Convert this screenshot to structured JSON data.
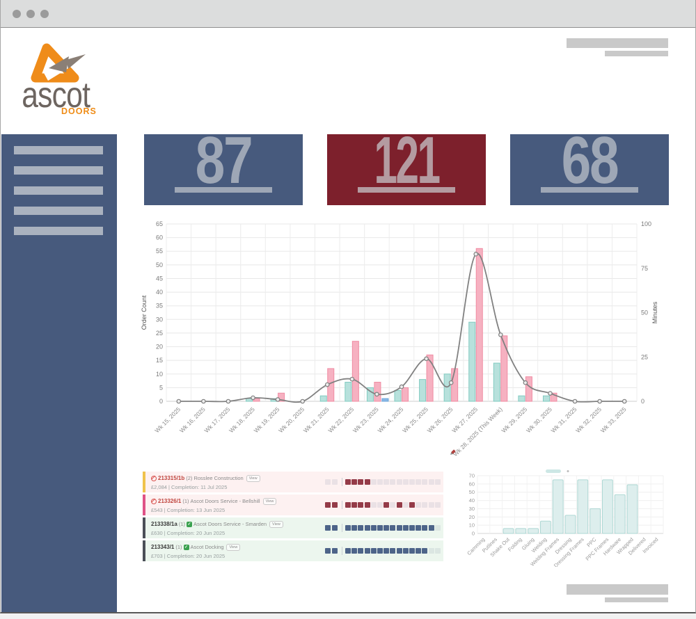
{
  "window": {
    "type": "browser-mockup"
  },
  "logo": {
    "brand": "ascot",
    "sub": "DOORS",
    "orange": "#ef8c1a",
    "gray": "#6d6560"
  },
  "stats": [
    {
      "value": "87",
      "bg": "#475a7d",
      "fg": "#9ea7b6"
    },
    {
      "value": "121",
      "bg": "#7d202c",
      "fg": "#b49ba1"
    },
    {
      "value": "68",
      "bg": "#475a7d",
      "fg": "#9ea7b6"
    }
  ],
  "chart_data": [
    {
      "type": "bar",
      "title": "",
      "ylabel": "Order Count",
      "ylabel_right": "Minutes",
      "ylim": [
        0,
        65
      ],
      "ylim_right": [
        0,
        100
      ],
      "ytick_step": 5,
      "yticks_right": [
        0,
        25,
        50,
        75,
        100
      ],
      "categories": [
        "Wk 15, 2025",
        "Wk 16, 2025",
        "Wk 17, 2025",
        "Wk 18, 2025",
        "Wk 19, 2025",
        "Wk 20, 2025",
        "Wk 21, 2025",
        "Wk 22, 2025",
        "Wk 23, 2025",
        "Wk 24, 2025",
        "Wk 25, 2025",
        "Wk 26, 2025",
        "Wk 27, 2025",
        "Wk 28, 2025 (This Week)",
        "Wk 29, 2025",
        "Wk 30, 2025",
        "Wk 31, 2025",
        "Wk 32, 2025",
        "Wk 33, 2025"
      ],
      "this_week_index": 13,
      "series": [
        {
          "name": "teal-bars",
          "type": "bar",
          "axis": "left",
          "fill": "#b7e1dc",
          "stroke": "#82cbc1",
          "values": [
            0,
            0,
            0,
            1,
            1,
            0,
            2,
            7,
            5,
            4,
            8,
            10,
            29,
            14,
            2,
            2,
            0,
            0,
            0
          ]
        },
        {
          "name": "pink-bars",
          "type": "bar",
          "axis": "left",
          "fill": "#f6b1c1",
          "stroke": "#f08ba2",
          "values": [
            0,
            0,
            0,
            1,
            3,
            0,
            12,
            22,
            7,
            5,
            17,
            12,
            56,
            24,
            9,
            3,
            0,
            0,
            0
          ]
        },
        {
          "name": "blue-bars",
          "type": "bar",
          "axis": "left",
          "fill": "#89b9e6",
          "stroke": "#6aa4da",
          "values": [
            0,
            0,
            0,
            0,
            0,
            0,
            0,
            0,
            1,
            0,
            0,
            0,
            0,
            0,
            0,
            0,
            0,
            0,
            0
          ]
        },
        {
          "name": "gray-line",
          "type": "line",
          "axis": "right",
          "color": "#818181",
          "values": [
            0,
            0,
            0,
            2,
            1,
            0,
            9.4,
            12.5,
            4,
            8.2,
            24,
            10.5,
            83,
            37.5,
            10.5,
            4.5,
            0,
            0,
            0
          ]
        }
      ]
    },
    {
      "type": "bar",
      "title": "",
      "ylim": [
        0,
        70
      ],
      "ytick_step": 10,
      "categories": [
        "Camming",
        "Putlines",
        "Shake Out",
        "Folding",
        "Gluing",
        "Welding",
        "Welding Frames",
        "Dressing",
        "Dressing Frames",
        "PPC",
        "PPC Frames",
        "Hardware",
        "Wrapped",
        "Delivered",
        "Invoiced"
      ],
      "values": [
        0,
        0,
        6,
        6,
        6,
        15,
        65,
        22,
        65,
        30,
        65,
        47,
        59,
        0,
        0
      ],
      "bar_fill": "#ddeeed",
      "bar_stroke": "#aed8d4"
    }
  ],
  "orders": [
    {
      "id": "213315/1b",
      "qty": "(2)",
      "customer": "Rosslee Construction",
      "view_label": "View",
      "detail": "£2,084 | Completion: 11 Jul 2025",
      "status": "stopped",
      "accent": "#f0c24b",
      "bg": "#fdf1f1",
      "id_color": "#c0463f",
      "step_color": "#943b48",
      "pre": [
        0,
        0
      ],
      "steps": [
        1,
        1,
        1,
        1,
        0,
        0,
        0,
        0,
        0,
        0,
        0,
        0,
        0,
        0,
        0
      ]
    },
    {
      "id": "213326/1",
      "qty": "(1)",
      "customer": "Ascot Doors Service - Bellshill",
      "view_label": "View",
      "detail": "£543 | Completion: 13 Jun 2025",
      "status": "stopped",
      "accent": "#df5286",
      "bg": "#fdf1f1",
      "id_color": "#c0463f",
      "step_color": "#943b48",
      "pre": [
        1,
        1
      ],
      "steps": [
        1,
        1,
        1,
        1,
        0,
        0,
        1,
        0,
        1,
        0,
        1,
        0,
        0,
        0,
        0
      ]
    },
    {
      "id": "213338/1a",
      "qty": "(1)",
      "customer": "Ascot Doors Service - Smarden",
      "view_label": "View",
      "detail": "£630 | Completion: 20 Jun 2025",
      "status": "ok",
      "accent": "#4b4f58",
      "bg": "#ecf6ee",
      "id_color": "#3a3a3a",
      "step_color": "#4d6489",
      "pre": [
        1,
        1
      ],
      "steps": [
        1,
        1,
        1,
        1,
        1,
        1,
        1,
        1,
        1,
        1,
        1,
        1,
        1,
        1,
        0
      ]
    },
    {
      "id": "213343/1",
      "qty": "(1)",
      "customer": "Ascot Docking",
      "view_label": "View",
      "detail": "£703 | Completion: 20 Jun 2025",
      "status": "ok",
      "accent": "#4b4f58",
      "bg": "#ecf6ee",
      "id_color": "#3a3a3a",
      "step_color": "#4d6489",
      "pre": [
        1,
        1
      ],
      "steps": [
        1,
        1,
        1,
        1,
        1,
        1,
        1,
        1,
        1,
        1,
        1,
        1,
        1,
        0,
        0
      ]
    }
  ],
  "inactive_step_color": "rgba(71,90,124,0.10)"
}
